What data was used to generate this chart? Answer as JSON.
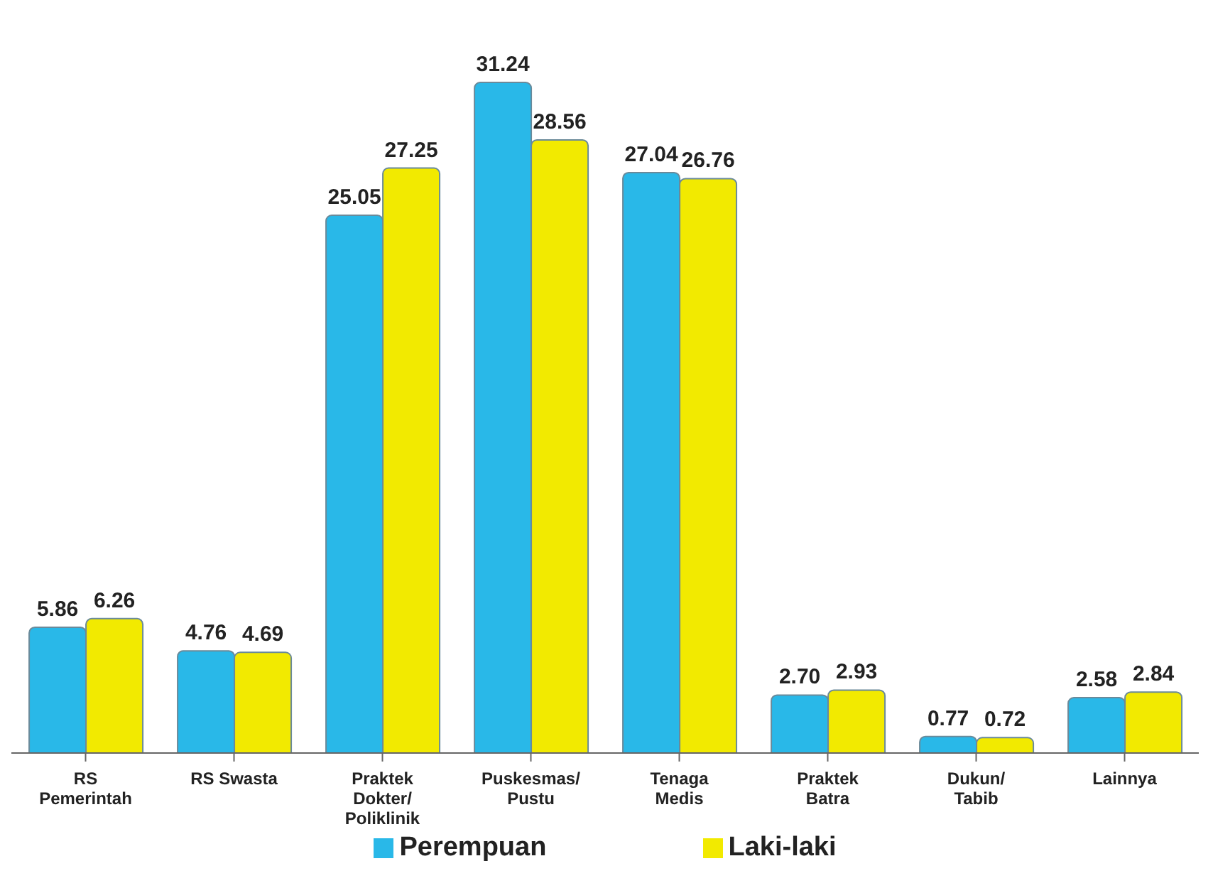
{
  "chart_data": {
    "type": "bar",
    "categories": [
      "RS Pemerintah",
      "RS Swasta",
      "Praktek Dokter/ Poliklinik",
      "Puskesmas/ Pustu",
      "Tenaga Medis",
      "Praktek Batra",
      "Dukun/ Tabib",
      "Lainnya"
    ],
    "series": [
      {
        "name": "Perempuan",
        "color": "#29b8e8",
        "values": [
          5.86,
          4.76,
          25.05,
          31.24,
          27.04,
          2.7,
          0.77,
          2.58
        ],
        "value_labels": [
          "5.86",
          "4.76",
          "25.05",
          "31.24",
          "27.04",
          "2.70",
          "0.77",
          "2.58"
        ]
      },
      {
        "name": "Laki-laki",
        "color": "#f2ea00",
        "values": [
          6.26,
          4.69,
          27.25,
          28.56,
          26.76,
          2.93,
          0.72,
          2.84
        ],
        "value_labels": [
          "6.26",
          "4.69",
          "27.25",
          "28.56",
          "26.76",
          "2.93",
          "0.72",
          "2.84"
        ]
      }
    ],
    "legend": "bottom"
  }
}
